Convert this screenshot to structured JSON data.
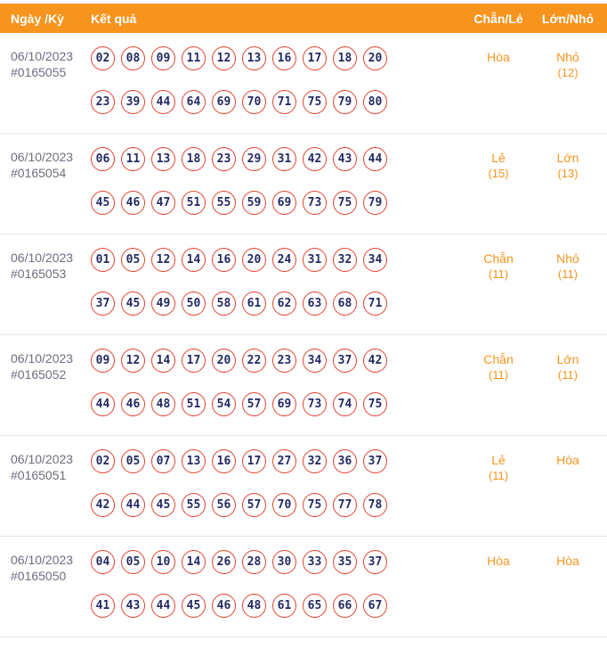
{
  "header": {
    "col_date": "Ngày /Kỳ",
    "col_result": "Kết quả",
    "col_evenodd": "Chẵn/Lẻ",
    "col_bigsmall": "Lớn/Nhỏ"
  },
  "colors": {
    "accent_orange": "#F7941E",
    "ball_border_red": "#E2432E",
    "ball_text_navy": "#222A63",
    "date_text_gray": "#6E6E80",
    "row_divider": "#E7E7E7"
  },
  "rows": [
    {
      "date": "06/10/2023",
      "draw_id": "#0165055",
      "numbers_line1": [
        "02",
        "08",
        "09",
        "11",
        "12",
        "13",
        "16",
        "17",
        "18",
        "20"
      ],
      "numbers_line2": [
        "23",
        "39",
        "44",
        "64",
        "69",
        "70",
        "71",
        "75",
        "79",
        "80"
      ],
      "evenodd": "Hòa",
      "evenodd_count": "",
      "bigsmall": "Nhỏ",
      "bigsmall_count": "(12)"
    },
    {
      "date": "06/10/2023",
      "draw_id": "#0165054",
      "numbers_line1": [
        "06",
        "11",
        "13",
        "18",
        "23",
        "29",
        "31",
        "42",
        "43",
        "44"
      ],
      "numbers_line2": [
        "45",
        "46",
        "47",
        "51",
        "55",
        "59",
        "69",
        "73",
        "75",
        "79"
      ],
      "evenodd": "Lẻ",
      "evenodd_count": "(15)",
      "bigsmall": "Lớn",
      "bigsmall_count": "(13)"
    },
    {
      "date": "06/10/2023",
      "draw_id": "#0165053",
      "numbers_line1": [
        "01",
        "05",
        "12",
        "14",
        "16",
        "20",
        "24",
        "31",
        "32",
        "34"
      ],
      "numbers_line2": [
        "37",
        "45",
        "49",
        "50",
        "58",
        "61",
        "62",
        "63",
        "68",
        "71"
      ],
      "evenodd": "Chẵn",
      "evenodd_count": "(11)",
      "bigsmall": "Nhỏ",
      "bigsmall_count": "(11)"
    },
    {
      "date": "06/10/2023",
      "draw_id": "#0165052",
      "numbers_line1": [
        "09",
        "12",
        "14",
        "17",
        "20",
        "22",
        "23",
        "34",
        "37",
        "42"
      ],
      "numbers_line2": [
        "44",
        "46",
        "48",
        "51",
        "54",
        "57",
        "69",
        "73",
        "74",
        "75"
      ],
      "evenodd": "Chẵn",
      "evenodd_count": "(11)",
      "bigsmall": "Lớn",
      "bigsmall_count": "(11)"
    },
    {
      "date": "06/10/2023",
      "draw_id": "#0165051",
      "numbers_line1": [
        "02",
        "05",
        "07",
        "13",
        "16",
        "17",
        "27",
        "32",
        "36",
        "37"
      ],
      "numbers_line2": [
        "42",
        "44",
        "45",
        "55",
        "56",
        "57",
        "70",
        "75",
        "77",
        "78"
      ],
      "evenodd": "Lẻ",
      "evenodd_count": "(11)",
      "bigsmall": "Hòa",
      "bigsmall_count": ""
    },
    {
      "date": "06/10/2023",
      "draw_id": "#0165050",
      "numbers_line1": [
        "04",
        "05",
        "10",
        "14",
        "26",
        "28",
        "30",
        "33",
        "35",
        "37"
      ],
      "numbers_line2": [
        "41",
        "43",
        "44",
        "45",
        "46",
        "48",
        "61",
        "65",
        "66",
        "67"
      ],
      "evenodd": "Hòa",
      "evenodd_count": "",
      "bigsmall": "Hòa",
      "bigsmall_count": ""
    }
  ]
}
